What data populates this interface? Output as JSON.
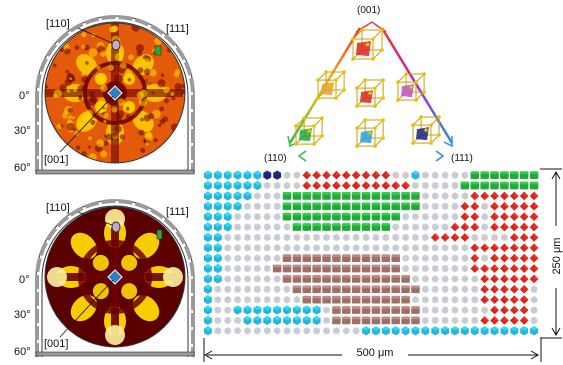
{
  "colors": {
    "texture_low": "#6b0000",
    "texture_mid": "#e25a0a",
    "texture_high": "#ffd800",
    "mount_gray": "#9a9a9a",
    "grain_cyan": "#28b4dc",
    "grain_navy": "#1a237e",
    "grain_red": "#d8261c",
    "grain_green": "#23a83a",
    "grain_brown": "#9c7068",
    "grain_gray": "#c9ccd2",
    "mark_blue": "#2e7fc0"
  },
  "pole_figure_top": {
    "label_110": "[110]",
    "label_111": "[111]",
    "label_001": "[001]",
    "angles": [
      "0°",
      "30°",
      "60°"
    ]
  },
  "pole_figure_bottom": {
    "label_110": "[110]",
    "label_111": "[111]",
    "label_001": "[001]",
    "angles": [
      "0°",
      "30°",
      "60°"
    ]
  },
  "ipf_triangle": {
    "vertex_top": "(001)",
    "vertex_left": "(110)",
    "vertex_right": "(111)",
    "gradient": [
      "#ff2a2a",
      "#b028c8",
      "#2a8ff0",
      "#33b84a",
      "#f0c020"
    ]
  },
  "scale": {
    "width_label": "500 μm",
    "height_label": "250 μm"
  },
  "grain_map": {
    "cols": 34,
    "rows": 16,
    "legend": {
      ".": "gray",
      "C": "cyan",
      "N": "navy",
      "R": "red",
      "G": "green",
      "B": "brown"
    },
    "grid": [
      "CCCCCCNN..RRRRRRRRR..C.....GGGGGGG",
      "CCCCCC....RRRRRRRRRRR.....GGGGGGGG",
      "CCCCC...GGGGGGGGGGGGGG.....RRRRRRR",
      "CCCC....GGGGGGGGGGGGGG....RR.RRRRR",
      "CCC.....GGGGGGGGGGGG......RR.RRRRR",
      "CCC......GGGGGGGGGG......RRR.RRRRR",
      "CC.....................RRRR....RRR",
      "CC.........................RRRRRRR",
      "CC......BBBBBBBBBBBB.......R.RRRRR",
      "CC.....BBBBBBBBBBBBB.......RRRRRRR",
      "CC......BBBBBBBBBBBBB.......RRRRRR",
      "C........BBBBBBBBBBBBB......RRRRR.",
      "C.........BBBBBBBBBBB.......RRRRR.",
      "C..CCCCCCCCC.BBBBBBBBB.......RRRR.",
      "C...CCCCCCCC.BBBBBBBBB......RRRRR.",
      "C...............CCCCCCCCCCCCCCCCCC"
    ]
  }
}
